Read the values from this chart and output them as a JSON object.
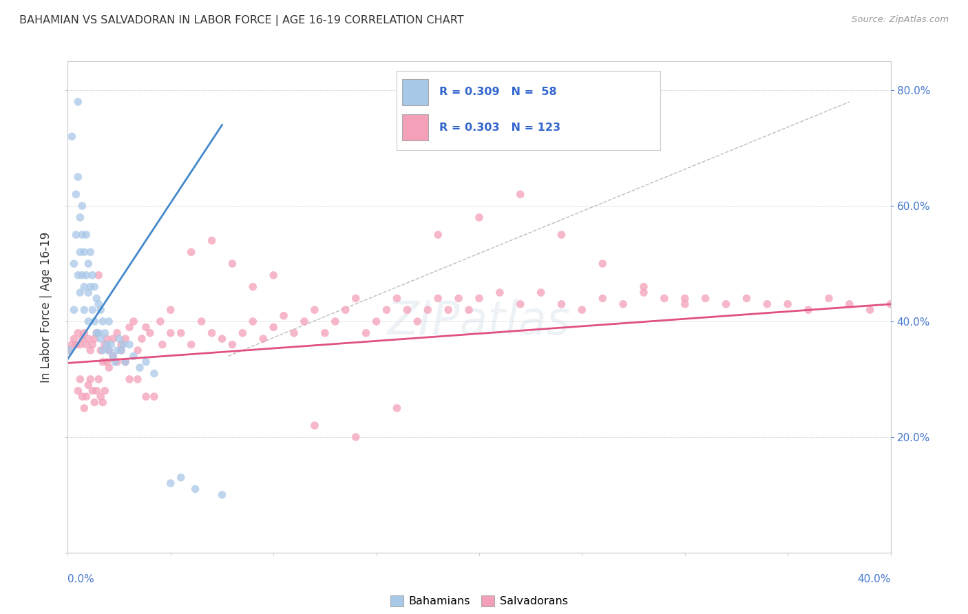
{
  "title": "BAHAMIAN VS SALVADORAN IN LABOR FORCE | AGE 16-19 CORRELATION CHART",
  "source": "Source: ZipAtlas.com",
  "ylabel": "In Labor Force | Age 16-19",
  "blue_color": "#a8c8e8",
  "pink_color": "#f4a0b8",
  "blue_line_color": "#4488cc",
  "pink_line_color": "#e05080",
  "watermark": "ZIPatlas",
  "xlim": [
    0.0,
    0.4
  ],
  "ylim": [
    0.0,
    0.85
  ],
  "blue_scatter_x": [
    0.001,
    0.002,
    0.003,
    0.003,
    0.004,
    0.004,
    0.005,
    0.005,
    0.005,
    0.006,
    0.006,
    0.006,
    0.007,
    0.007,
    0.007,
    0.008,
    0.008,
    0.008,
    0.009,
    0.009,
    0.01,
    0.01,
    0.01,
    0.011,
    0.011,
    0.012,
    0.012,
    0.013,
    0.013,
    0.014,
    0.014,
    0.015,
    0.015,
    0.016,
    0.016,
    0.017,
    0.017,
    0.018,
    0.019,
    0.02,
    0.02,
    0.021,
    0.022,
    0.023,
    0.024,
    0.025,
    0.026,
    0.027,
    0.028,
    0.03,
    0.032,
    0.035,
    0.038,
    0.042,
    0.05,
    0.055,
    0.062,
    0.075
  ],
  "blue_scatter_y": [
    0.35,
    0.72,
    0.5,
    0.42,
    0.62,
    0.55,
    0.78,
    0.65,
    0.48,
    0.58,
    0.52,
    0.45,
    0.6,
    0.55,
    0.48,
    0.52,
    0.46,
    0.42,
    0.55,
    0.48,
    0.5,
    0.45,
    0.4,
    0.52,
    0.46,
    0.48,
    0.42,
    0.46,
    0.4,
    0.44,
    0.38,
    0.43,
    0.38,
    0.42,
    0.37,
    0.4,
    0.35,
    0.38,
    0.36,
    0.4,
    0.35,
    0.36,
    0.34,
    0.33,
    0.35,
    0.37,
    0.35,
    0.36,
    0.33,
    0.36,
    0.34,
    0.32,
    0.33,
    0.31,
    0.12,
    0.13,
    0.11,
    0.1
  ],
  "pink_scatter_x": [
    0.001,
    0.002,
    0.003,
    0.004,
    0.005,
    0.006,
    0.007,
    0.008,
    0.009,
    0.01,
    0.011,
    0.012,
    0.013,
    0.014,
    0.015,
    0.016,
    0.017,
    0.018,
    0.019,
    0.02,
    0.022,
    0.024,
    0.026,
    0.028,
    0.03,
    0.032,
    0.034,
    0.036,
    0.038,
    0.04,
    0.045,
    0.05,
    0.055,
    0.06,
    0.065,
    0.07,
    0.075,
    0.08,
    0.085,
    0.09,
    0.095,
    0.1,
    0.105,
    0.11,
    0.115,
    0.12,
    0.125,
    0.13,
    0.135,
    0.14,
    0.145,
    0.15,
    0.155,
    0.16,
    0.165,
    0.17,
    0.175,
    0.18,
    0.185,
    0.19,
    0.195,
    0.2,
    0.21,
    0.22,
    0.23,
    0.24,
    0.25,
    0.26,
    0.27,
    0.28,
    0.29,
    0.3,
    0.31,
    0.32,
    0.33,
    0.34,
    0.35,
    0.36,
    0.37,
    0.38,
    0.39,
    0.4,
    0.005,
    0.006,
    0.007,
    0.008,
    0.009,
    0.01,
    0.011,
    0.012,
    0.013,
    0.014,
    0.015,
    0.016,
    0.017,
    0.018,
    0.019,
    0.02,
    0.022,
    0.024,
    0.026,
    0.028,
    0.03,
    0.034,
    0.038,
    0.042,
    0.046,
    0.05,
    0.06,
    0.07,
    0.08,
    0.09,
    0.1,
    0.12,
    0.14,
    0.16,
    0.18,
    0.2,
    0.22,
    0.24,
    0.26,
    0.28,
    0.3
  ],
  "pink_scatter_y": [
    0.35,
    0.36,
    0.37,
    0.36,
    0.38,
    0.36,
    0.37,
    0.38,
    0.36,
    0.37,
    0.35,
    0.36,
    0.37,
    0.38,
    0.48,
    0.35,
    0.33,
    0.36,
    0.37,
    0.32,
    0.34,
    0.38,
    0.36,
    0.37,
    0.39,
    0.4,
    0.35,
    0.37,
    0.39,
    0.38,
    0.4,
    0.42,
    0.38,
    0.36,
    0.4,
    0.38,
    0.37,
    0.36,
    0.38,
    0.4,
    0.37,
    0.39,
    0.41,
    0.38,
    0.4,
    0.42,
    0.38,
    0.4,
    0.42,
    0.44,
    0.38,
    0.4,
    0.42,
    0.44,
    0.42,
    0.4,
    0.42,
    0.44,
    0.42,
    0.44,
    0.42,
    0.44,
    0.45,
    0.43,
    0.45,
    0.43,
    0.42,
    0.44,
    0.43,
    0.45,
    0.44,
    0.43,
    0.44,
    0.43,
    0.44,
    0.43,
    0.43,
    0.42,
    0.44,
    0.43,
    0.42,
    0.43,
    0.28,
    0.3,
    0.27,
    0.25,
    0.27,
    0.29,
    0.3,
    0.28,
    0.26,
    0.28,
    0.3,
    0.27,
    0.26,
    0.28,
    0.33,
    0.35,
    0.37,
    0.33,
    0.35,
    0.33,
    0.3,
    0.3,
    0.27,
    0.27,
    0.36,
    0.38,
    0.52,
    0.54,
    0.5,
    0.46,
    0.48,
    0.22,
    0.2,
    0.25,
    0.55,
    0.58,
    0.62,
    0.55,
    0.5,
    0.46,
    0.44
  ],
  "blue_line_x": [
    0.0,
    0.075
  ],
  "blue_line_y": [
    0.335,
    0.74
  ],
  "pink_line_x": [
    0.0,
    0.4
  ],
  "pink_line_y": [
    0.328,
    0.43
  ],
  "dash_line_x": [
    0.078,
    0.38
  ],
  "dash_line_y": [
    0.34,
    0.78
  ]
}
